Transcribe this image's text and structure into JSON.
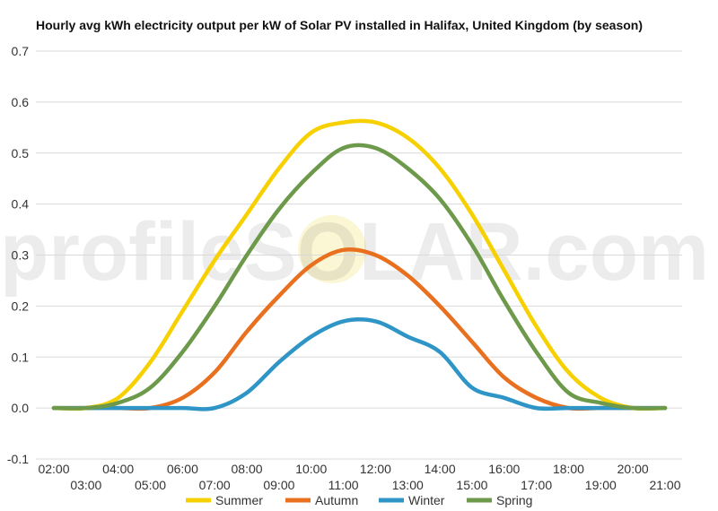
{
  "chart_data": {
    "type": "line",
    "title": "Hourly avg kWh electricity output per kW of Solar PV installed in Halifax, United Kingdom (by season)",
    "watermark": "profileSOLAR.com",
    "xlabel": "",
    "ylabel": "",
    "ylim": [
      -0.1,
      0.7
    ],
    "yticks": [
      "0.7",
      "0.6",
      "0.5",
      "0.4",
      "0.3",
      "0.2",
      "0.1",
      "0.0",
      "-0.1"
    ],
    "x": [
      "02:00",
      "03:00",
      "04:00",
      "05:00",
      "06:00",
      "07:00",
      "08:00",
      "09:00",
      "10:00",
      "11:00",
      "12:00",
      "13:00",
      "14:00",
      "15:00",
      "16:00",
      "17:00",
      "18:00",
      "19:00",
      "20:00",
      "21:00"
    ],
    "legend_position": "bottom",
    "grid": true,
    "series": [
      {
        "name": "Summer",
        "color": "#f7d000",
        "values": [
          0.0,
          0.0,
          0.02,
          0.09,
          0.19,
          0.29,
          0.38,
          0.47,
          0.54,
          0.56,
          0.56,
          0.53,
          0.47,
          0.38,
          0.27,
          0.16,
          0.07,
          0.02,
          0.0,
          0.0
        ]
      },
      {
        "name": "Autumn",
        "color": "#e8701e",
        "values": [
          0.0,
          0.0,
          0.0,
          0.0,
          0.02,
          0.07,
          0.15,
          0.22,
          0.28,
          0.31,
          0.3,
          0.26,
          0.2,
          0.13,
          0.06,
          0.02,
          0.0,
          0.0,
          0.0,
          0.0
        ]
      },
      {
        "name": "Winter",
        "color": "#2e95c6",
        "values": [
          0.0,
          0.0,
          0.0,
          0.0,
          0.0,
          0.0,
          0.03,
          0.09,
          0.14,
          0.17,
          0.17,
          0.14,
          0.11,
          0.04,
          0.02,
          0.0,
          0.0,
          0.0,
          0.0,
          0.0
        ]
      },
      {
        "name": "Spring",
        "color": "#6d9a4a",
        "values": [
          0.0,
          0.0,
          0.01,
          0.04,
          0.11,
          0.2,
          0.3,
          0.39,
          0.46,
          0.51,
          0.51,
          0.47,
          0.41,
          0.32,
          0.21,
          0.11,
          0.03,
          0.01,
          0.0,
          0.0
        ]
      }
    ]
  }
}
